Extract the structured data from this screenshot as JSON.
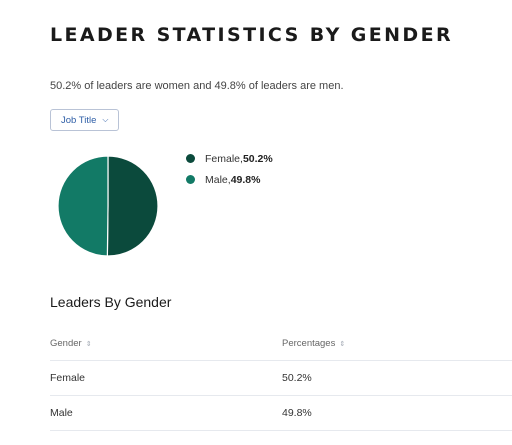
{
  "page_title": "LEADER STATISTICS BY GENDER",
  "summary": "50.2% of leaders are women and 49.8% of leaders are men.",
  "filter": {
    "label": "Job Title",
    "icon": "chevron-down-icon"
  },
  "legend": [
    {
      "label": "Female, ",
      "value": "50.2%",
      "color": "#0b4a3c"
    },
    {
      "label": "Male, ",
      "value": "49.8%",
      "color": "#127a66"
    }
  ],
  "pie": {
    "slices": [
      {
        "name": "Female",
        "value": 50.2,
        "color": "#0b4a3c"
      },
      {
        "name": "Male",
        "value": 49.8,
        "color": "#127a66"
      }
    ]
  },
  "table": {
    "title": "Leaders By Gender",
    "columns": [
      "Gender",
      "Percentages"
    ],
    "sort_icon": "sort-icon",
    "rows": [
      [
        "Female",
        "50.2%"
      ],
      [
        "Male",
        "49.8%"
      ]
    ]
  }
}
